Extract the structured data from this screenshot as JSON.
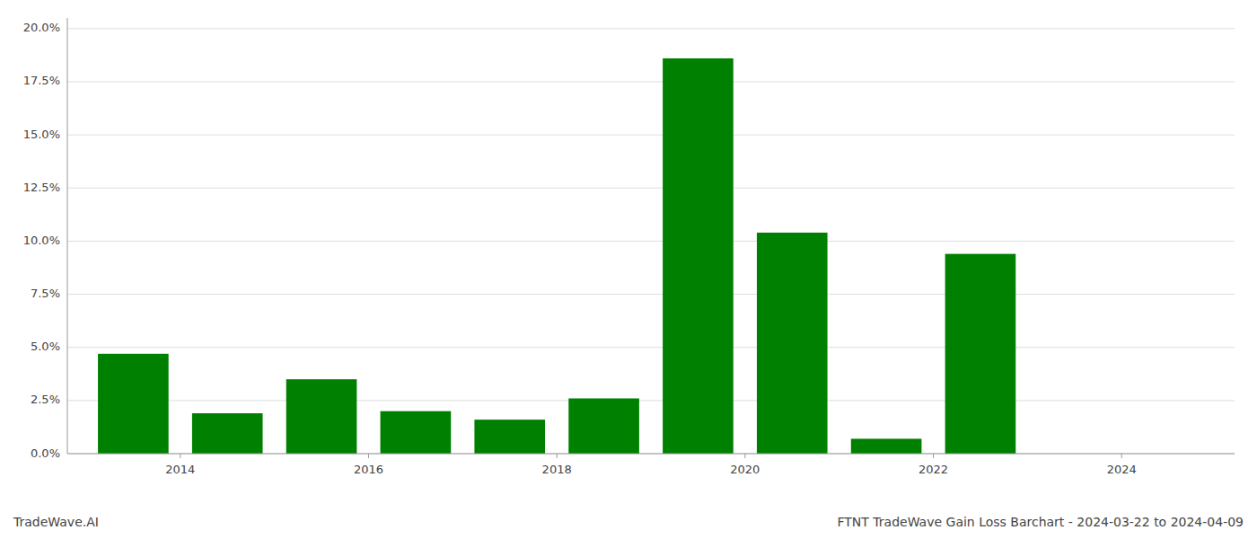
{
  "chart_data": {
    "type": "bar",
    "title": "FTNT TradeWave Gain Loss Barchart - 2024-03-22 to 2024-04-09",
    "annotations": [
      {
        "text": "TradeWave.AI"
      }
    ],
    "x": [
      2013,
      2014,
      2015,
      2016,
      2017,
      2018,
      2019,
      2020,
      2021,
      2022,
      2023
    ],
    "values": [
      0.047,
      0.019,
      0.035,
      0.02,
      0.016,
      0.026,
      0.186,
      0.104,
      0.007,
      0.094,
      0.0
    ],
    "color": "#008000",
    "xlim": [
      2012.8,
      2025.2
    ],
    "xticks": [
      2014,
      2016,
      2018,
      2020,
      2022,
      2024
    ],
    "ylim": [
      0,
      0.205
    ],
    "yticks": [
      {
        "value": 0.0,
        "label": "0.0%"
      },
      {
        "value": 0.025,
        "label": "2.5%"
      },
      {
        "value": 0.05,
        "label": "5.0%"
      },
      {
        "value": 0.075,
        "label": "7.5%"
      },
      {
        "value": 0.1,
        "label": "10.0%"
      },
      {
        "value": 0.125,
        "label": "12.5%"
      },
      {
        "value": 0.15,
        "label": "15.0%"
      },
      {
        "value": 0.175,
        "label": "17.5%"
      },
      {
        "value": 0.2,
        "label": "20.0%"
      }
    ],
    "grid": true
  }
}
